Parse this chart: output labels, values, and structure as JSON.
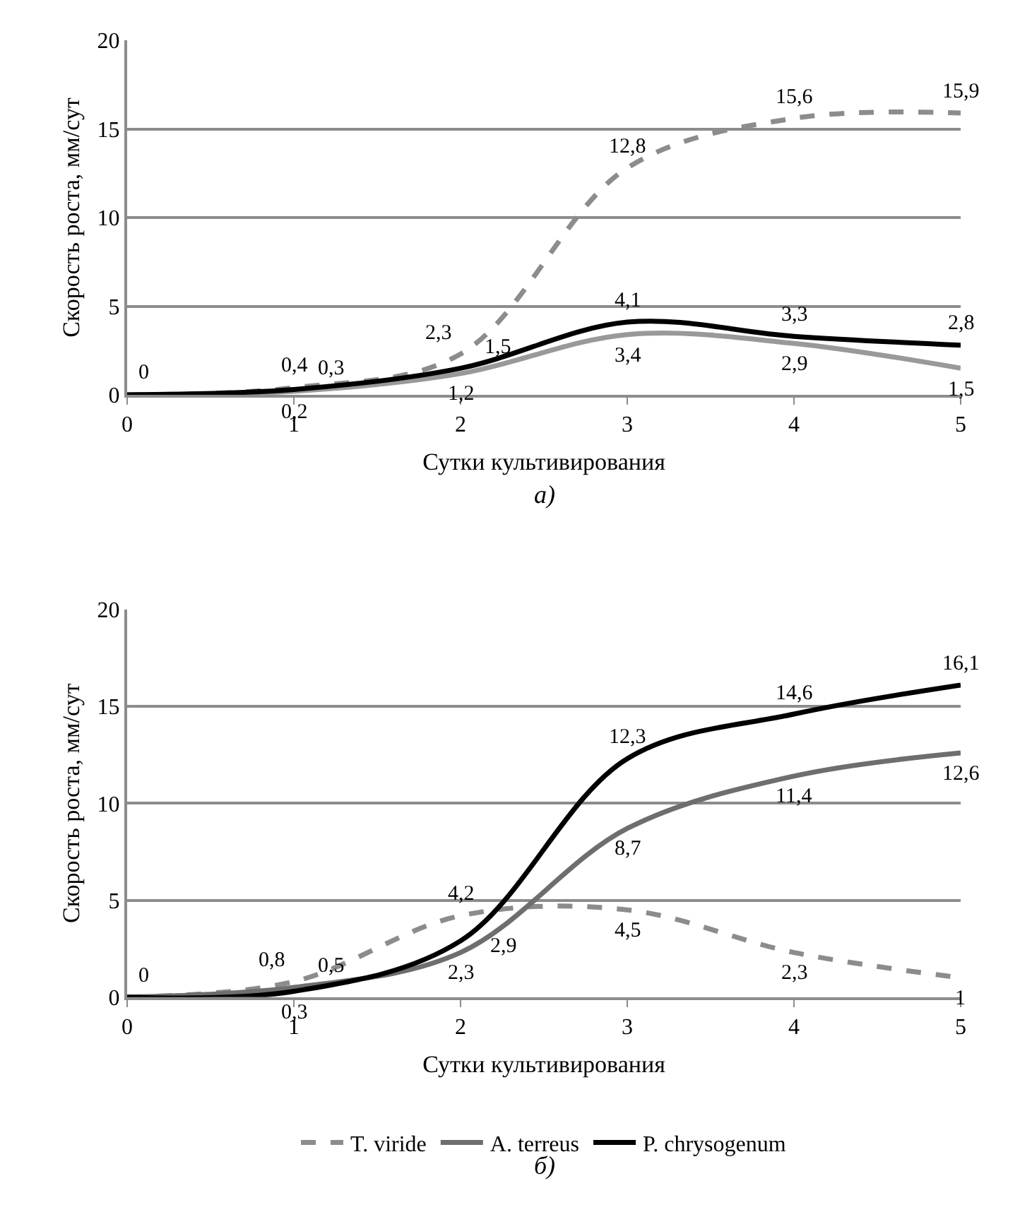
{
  "chart_data": [
    {
      "type": "line",
      "x": [
        0,
        1,
        2,
        3,
        4,
        5
      ],
      "xlabel": "Сутки культивирования",
      "ylabel": "Скорость роста, мм/сут",
      "xlim": [
        0,
        5
      ],
      "xticks": [
        0,
        1,
        2,
        3,
        4,
        5
      ],
      "ylim": [
        0,
        20
      ],
      "yticks": [
        0,
        5,
        10,
        15,
        20
      ],
      "grid": "y",
      "legend": false,
      "line_style": "solid",
      "annotations": [
        "а)"
      ],
      "series": [
        {
          "color": "#8c8c8c",
          "line_style": "dashed",
          "values": [
            0,
            0.4,
            2.3,
            12.8,
            15.6,
            15.9
          ],
          "value_labels": [
            null,
            "0,4",
            "2,3",
            "12,8",
            "15,6",
            "15,9"
          ]
        },
        {
          "color": "#999999",
          "values": [
            0,
            0.2,
            1.2,
            3.4,
            2.9,
            1.5
          ],
          "value_labels": [
            null,
            "0,2",
            "1,2",
            "3,4",
            "2,9",
            "1,5"
          ]
        },
        {
          "color": "#000000",
          "values": [
            0,
            0.3,
            1.5,
            4.1,
            3.3,
            2.8
          ],
          "value_labels": [
            "0",
            "0,3",
            "1,5",
            "4,1",
            "3,3",
            "2,8"
          ]
        }
      ]
    },
    {
      "type": "line",
      "x": [
        0,
        1,
        2,
        3,
        4,
        5
      ],
      "xlabel": "Сутки культивирования",
      "ylabel": "Скорость роста, мм/сут",
      "xlim": [
        0,
        5
      ],
      "xticks": [
        0,
        1,
        2,
        3,
        4,
        5
      ],
      "ylim": [
        0,
        20
      ],
      "yticks": [
        0,
        5,
        10,
        15,
        20
      ],
      "grid": "y",
      "legend": "bottom",
      "line_style": "solid",
      "annotations": [
        "б)"
      ],
      "series": [
        {
          "name": "T. viride",
          "color": "#8c8c8c",
          "line_style": "dashed",
          "values": [
            0,
            0.8,
            4.2,
            4.5,
            2.3,
            1
          ],
          "value_labels": [
            null,
            "0,8",
            "4,2",
            "4,5",
            "2,3",
            "1"
          ]
        },
        {
          "name": "A. terreus",
          "color": "#6e6e6e",
          "values": [
            0,
            0.5,
            2.3,
            8.7,
            11.4,
            12.6
          ],
          "value_labels": [
            null,
            "0,5",
            "2,3",
            "8,7",
            "11,4",
            "12,6"
          ]
        },
        {
          "name": "P. chrysogenum",
          "color": "#000000",
          "values": [
            0,
            0.3,
            2.9,
            12.3,
            14.6,
            16.1
          ],
          "value_labels": [
            "0",
            "0,3",
            "2,9",
            "12,3",
            "14,6",
            "16,1"
          ]
        }
      ]
    }
  ]
}
